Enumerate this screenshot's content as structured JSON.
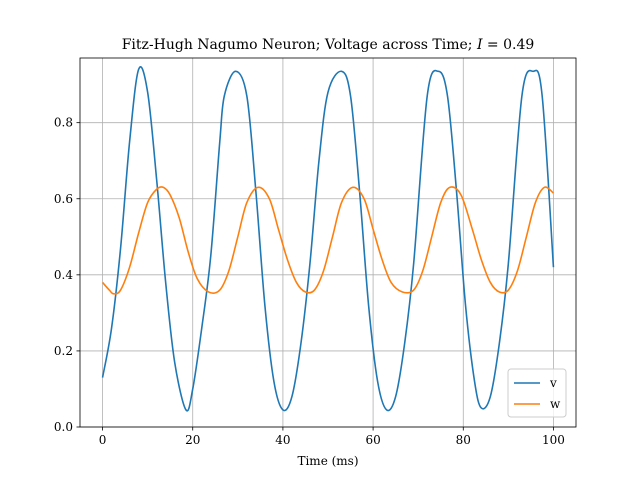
{
  "chart_data": {
    "type": "line",
    "title": "Fitz-Hugh Nagumo Neuron; Voltage across Time; I = 0.49",
    "title_prefix": "Fitz-Hugh Nagumo Neuron; Voltage across Time; ",
    "title_math": "I",
    "title_suffix": " = 0.49",
    "xlabel": "Time (ms)",
    "ylabel": "",
    "xlim": [
      -5,
      105
    ],
    "ylim": [
      0,
      0.97
    ],
    "xticks": [
      0,
      20,
      40,
      60,
      80,
      100
    ],
    "xtick_labels": [
      "0",
      "20",
      "40",
      "60",
      "80",
      "100"
    ],
    "yticks": [
      0.0,
      0.2,
      0.4,
      0.6,
      0.8
    ],
    "ytick_labels": [
      "0.0",
      "0.2",
      "0.4",
      "0.6",
      "0.8"
    ],
    "grid": true,
    "legend_position": "bottom-right",
    "series": [
      {
        "name": "v",
        "color": "#1f77b4",
        "x": [
          0,
          2,
          4,
          6,
          8,
          10,
          12,
          14,
          16,
          18.5,
          20,
          22,
          24,
          26,
          27,
          29.5,
          32,
          34,
          36,
          38,
          40,
          42,
          44,
          46,
          48,
          50,
          53,
          55,
          57,
          59,
          61,
          63,
          65,
          67,
          69,
          72,
          74.5,
          76.5,
          78.5,
          80.5,
          82.5,
          84,
          86,
          88,
          90,
          93,
          95.5,
          97.5,
          100
        ],
        "y": [
          0.13,
          0.26,
          0.47,
          0.75,
          0.94,
          0.88,
          0.65,
          0.38,
          0.17,
          0.045,
          0.1,
          0.26,
          0.45,
          0.75,
          0.87,
          0.935,
          0.87,
          0.62,
          0.32,
          0.12,
          0.045,
          0.08,
          0.22,
          0.43,
          0.7,
          0.88,
          0.935,
          0.87,
          0.62,
          0.32,
          0.12,
          0.045,
          0.08,
          0.22,
          0.43,
          0.87,
          0.935,
          0.87,
          0.62,
          0.32,
          0.12,
          0.05,
          0.08,
          0.22,
          0.43,
          0.87,
          0.935,
          0.87,
          0.42
        ]
      },
      {
        "name": "w",
        "color": "#ff7f0e",
        "x": [
          0,
          1.5,
          2.5,
          4,
          6,
          8,
          10,
          12,
          13.5,
          15,
          17,
          19,
          21,
          23.5,
          26,
          28,
          30,
          32,
          34.5,
          37,
          39,
          41,
          43,
          45,
          47,
          49,
          51,
          53,
          55.5,
          58,
          60,
          62,
          64,
          66.5,
          69,
          71,
          73,
          75,
          77,
          79.5,
          82,
          84,
          86,
          88,
          90,
          92,
          94,
          96,
          98,
          100
        ],
        "y": [
          0.38,
          0.36,
          0.35,
          0.36,
          0.42,
          0.51,
          0.59,
          0.625,
          0.63,
          0.61,
          0.55,
          0.46,
          0.39,
          0.355,
          0.36,
          0.41,
          0.5,
          0.59,
          0.63,
          0.6,
          0.52,
          0.44,
          0.38,
          0.355,
          0.36,
          0.41,
          0.5,
          0.59,
          0.63,
          0.6,
          0.52,
          0.44,
          0.38,
          0.355,
          0.36,
          0.41,
          0.5,
          0.59,
          0.63,
          0.61,
          0.52,
          0.44,
          0.38,
          0.355,
          0.36,
          0.41,
          0.5,
          0.59,
          0.63,
          0.615
        ]
      }
    ]
  }
}
